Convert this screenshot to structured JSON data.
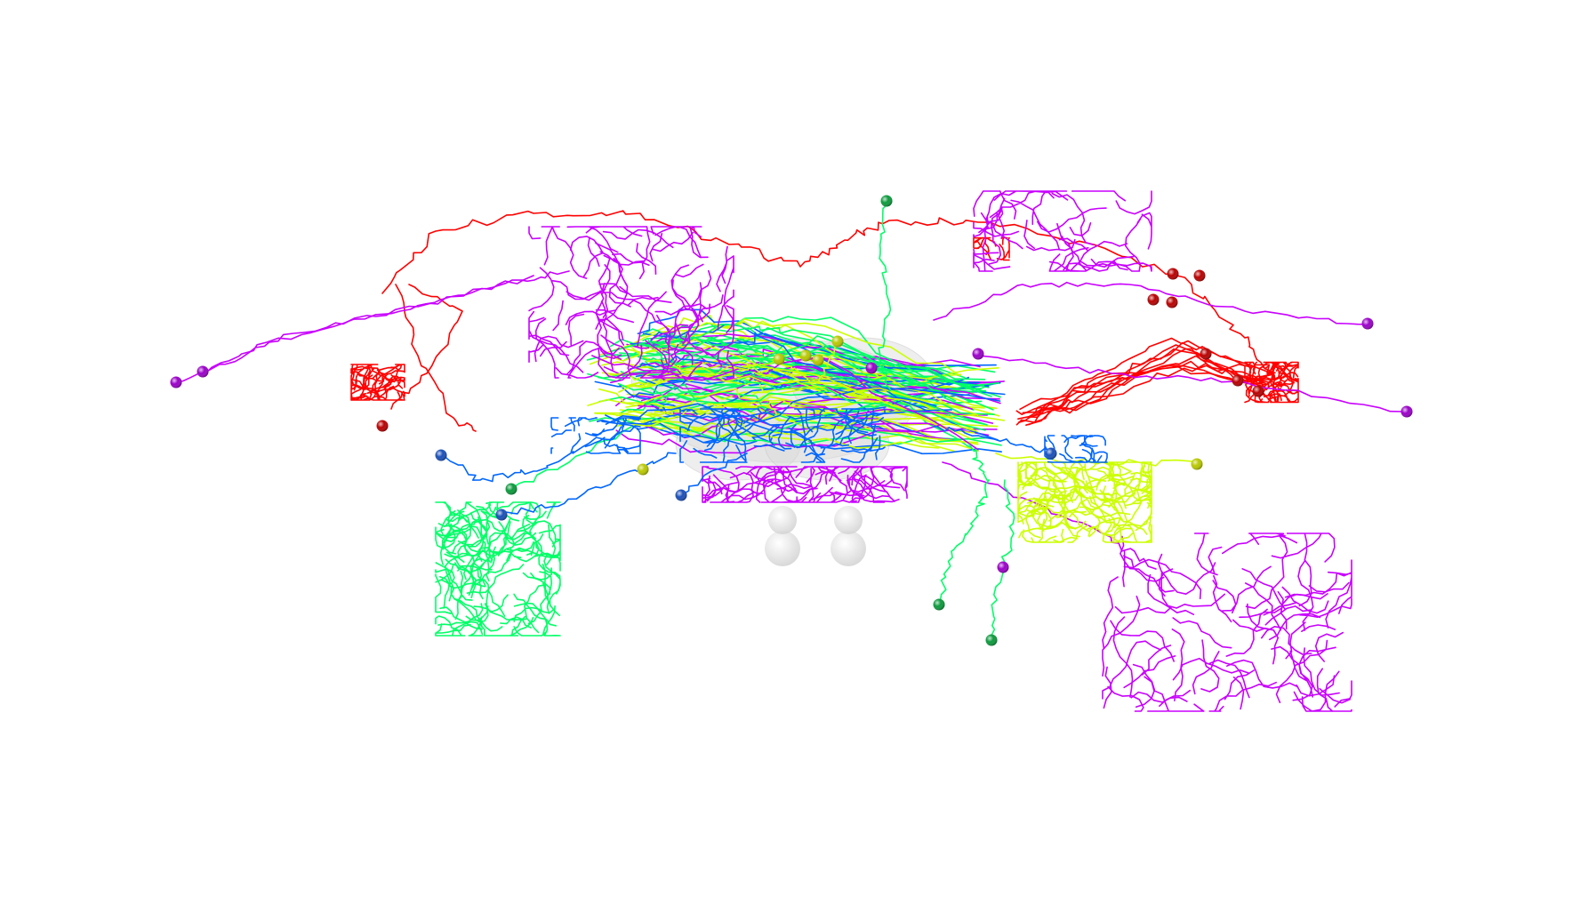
{
  "scene": {
    "background": "#ffffff",
    "neuropil_color": "#d4d4d4"
  },
  "neuron_groups": [
    {
      "id": "red",
      "color": "#ff0000",
      "soma_color": "#b80000"
    },
    {
      "id": "magenta",
      "color": "#c800ff",
      "soma_color": "#9a00c8"
    },
    {
      "id": "green",
      "color": "#00ff66",
      "soma_color": "#0b9a3c"
    },
    {
      "id": "blue",
      "color": "#0066ff",
      "soma_color": "#1a4fb8"
    },
    {
      "id": "yellow-green",
      "color": "#ccff00",
      "soma_color": "#b8c800"
    }
  ]
}
